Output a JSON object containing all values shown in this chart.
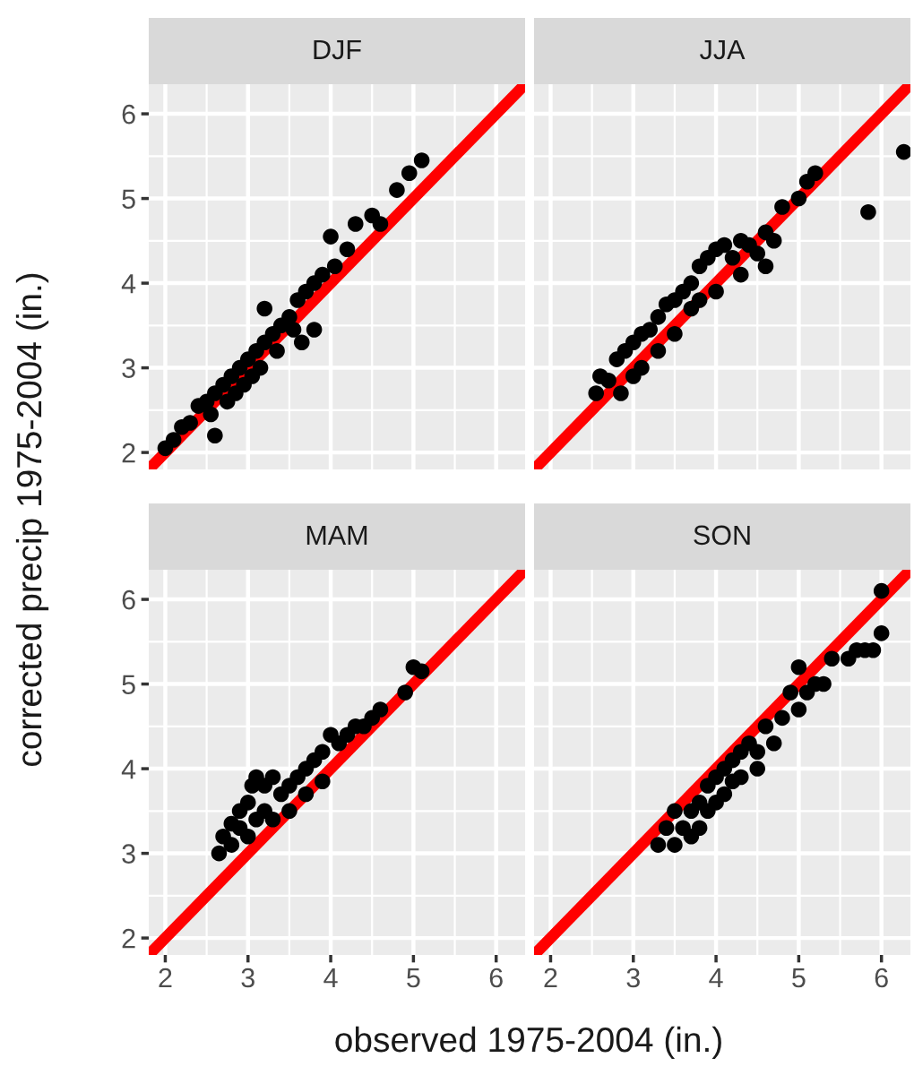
{
  "chart_data": [
    {
      "type": "scatter",
      "title": "DJF",
      "ylabel": "corrected precip 1975-2004 (in.)",
      "xlim": [
        1.8,
        6.35
      ],
      "ylim": [
        1.8,
        6.35
      ],
      "xticks": [
        2,
        3,
        4,
        5,
        6
      ],
      "yticks": [
        2,
        3,
        4,
        5,
        6
      ],
      "grid": true,
      "tick_labels": "y",
      "marker": "circle",
      "series": [
        {
          "color": "#000000",
          "x": [
            2.0,
            2.1,
            2.2,
            2.3,
            2.4,
            2.5,
            2.55,
            2.6,
            2.6,
            2.7,
            2.75,
            2.8,
            2.85,
            2.9,
            2.95,
            3.0,
            3.05,
            3.1,
            3.15,
            3.2,
            3.2,
            3.3,
            3.35,
            3.4,
            3.5,
            3.55,
            3.6,
            3.65,
            3.7,
            3.8,
            3.8,
            3.9,
            4.0,
            4.05,
            4.2,
            4.3,
            4.5,
            4.6,
            4.8,
            4.95,
            5.1
          ],
          "values": [
            2.05,
            2.15,
            2.3,
            2.35,
            2.55,
            2.6,
            2.45,
            2.7,
            2.2,
            2.8,
            2.6,
            2.9,
            2.7,
            3.0,
            2.8,
            3.1,
            2.9,
            3.2,
            3.0,
            3.3,
            3.7,
            3.4,
            3.2,
            3.5,
            3.6,
            3.45,
            3.8,
            3.3,
            3.9,
            3.45,
            4.0,
            4.1,
            4.55,
            4.2,
            4.4,
            4.7,
            4.8,
            4.7,
            5.1,
            5.3,
            5.45
          ]
        },
        {
          "type": "line",
          "color": "#ff0000",
          "marker": "none",
          "x": [
            1.8,
            6.35
          ],
          "values": [
            1.8,
            6.35
          ]
        }
      ]
    },
    {
      "type": "scatter",
      "title": "JJA",
      "xlim": [
        1.8,
        6.35
      ],
      "ylim": [
        1.8,
        6.35
      ],
      "xticks": [
        2,
        3,
        4,
        5,
        6
      ],
      "yticks": [
        2,
        3,
        4,
        5,
        6
      ],
      "grid": true,
      "tick_labels": false,
      "marker": "circle",
      "series": [
        {
          "color": "#000000",
          "x": [
            2.55,
            2.6,
            2.7,
            2.8,
            2.85,
            2.9,
            3.0,
            3.0,
            3.1,
            3.1,
            3.2,
            3.3,
            3.3,
            3.4,
            3.5,
            3.5,
            3.6,
            3.7,
            3.7,
            3.8,
            3.8,
            3.9,
            4.0,
            4.0,
            4.1,
            4.2,
            4.3,
            4.3,
            4.4,
            4.5,
            4.6,
            4.6,
            4.7,
            4.8,
            5.0,
            5.1,
            5.2,
            5.84,
            6.27
          ],
          "values": [
            2.7,
            2.9,
            2.85,
            3.1,
            2.7,
            3.2,
            3.3,
            2.9,
            3.4,
            3.0,
            3.45,
            3.6,
            3.2,
            3.75,
            3.8,
            3.4,
            3.9,
            3.7,
            4.0,
            4.2,
            3.8,
            4.3,
            4.4,
            3.9,
            4.45,
            4.3,
            4.5,
            4.1,
            4.45,
            4.35,
            4.2,
            4.6,
            4.5,
            4.9,
            5.0,
            5.2,
            5.3,
            4.84,
            5.55
          ]
        },
        {
          "type": "line",
          "color": "#ff0000",
          "marker": "none",
          "x": [
            1.8,
            6.35
          ],
          "values": [
            1.8,
            6.35
          ]
        }
      ]
    },
    {
      "type": "scatter",
      "title": "MAM",
      "xlim": [
        1.8,
        6.35
      ],
      "ylim": [
        1.8,
        6.35
      ],
      "xticks": [
        2,
        3,
        4,
        5,
        6
      ],
      "yticks": [
        2,
        3,
        4,
        5,
        6
      ],
      "grid": true,
      "marker": "circle",
      "series": [
        {
          "color": "#000000",
          "x": [
            2.65,
            2.7,
            2.8,
            2.8,
            2.9,
            2.9,
            3.0,
            3.0,
            3.05,
            3.1,
            3.1,
            3.2,
            3.2,
            3.3,
            3.3,
            3.4,
            3.5,
            3.5,
            3.6,
            3.7,
            3.7,
            3.8,
            3.9,
            3.9,
            4.0,
            4.1,
            4.2,
            4.3,
            4.4,
            4.5,
            4.6,
            4.9,
            5.0,
            5.1
          ],
          "values": [
            3.0,
            3.2,
            3.1,
            3.35,
            3.3,
            3.5,
            3.2,
            3.6,
            3.8,
            3.4,
            3.9,
            3.5,
            3.8,
            3.9,
            3.4,
            3.7,
            3.8,
            3.5,
            3.9,
            4.0,
            3.7,
            4.1,
            4.2,
            3.85,
            4.4,
            4.3,
            4.4,
            4.5,
            4.5,
            4.6,
            4.7,
            4.9,
            5.2,
            5.15
          ]
        },
        {
          "type": "line",
          "color": "#ff0000",
          "marker": "none",
          "x": [
            1.8,
            6.35
          ],
          "values": [
            1.8,
            6.35
          ]
        }
      ]
    },
    {
      "type": "scatter",
      "title": "SON",
      "xlabel": "observed 1975-2004 (in.)",
      "xlim": [
        1.8,
        6.35
      ],
      "ylim": [
        1.8,
        6.35
      ],
      "xticks": [
        2,
        3,
        4,
        5,
        6
      ],
      "yticks": [
        2,
        3,
        4,
        5,
        6
      ],
      "grid": true,
      "tick_labels": "x",
      "marker": "circle",
      "series": [
        {
          "color": "#000000",
          "x": [
            3.3,
            3.4,
            3.5,
            3.5,
            3.6,
            3.7,
            3.7,
            3.8,
            3.8,
            3.9,
            3.9,
            4.0,
            4.0,
            4.1,
            4.1,
            4.2,
            4.2,
            4.3,
            4.3,
            4.4,
            4.5,
            4.5,
            4.6,
            4.7,
            4.8,
            4.9,
            5.0,
            5.0,
            5.1,
            5.2,
            5.3,
            5.4,
            5.6,
            5.7,
            5.8,
            5.9,
            6.0,
            6.0
          ],
          "values": [
            3.1,
            3.3,
            3.1,
            3.5,
            3.3,
            3.5,
            3.2,
            3.6,
            3.3,
            3.8,
            3.5,
            3.9,
            3.6,
            4.0,
            3.7,
            4.1,
            3.85,
            4.2,
            3.9,
            4.3,
            4.2,
            4.0,
            4.5,
            4.3,
            4.6,
            4.9,
            5.2,
            4.7,
            4.9,
            5.0,
            5.0,
            5.3,
            5.3,
            5.4,
            5.4,
            5.4,
            5.6,
            6.1
          ]
        },
        {
          "type": "line",
          "color": "#ff0000",
          "marker": "none",
          "x": [
            1.8,
            6.35
          ],
          "values": [
            1.8,
            6.35
          ]
        }
      ]
    }
  ]
}
